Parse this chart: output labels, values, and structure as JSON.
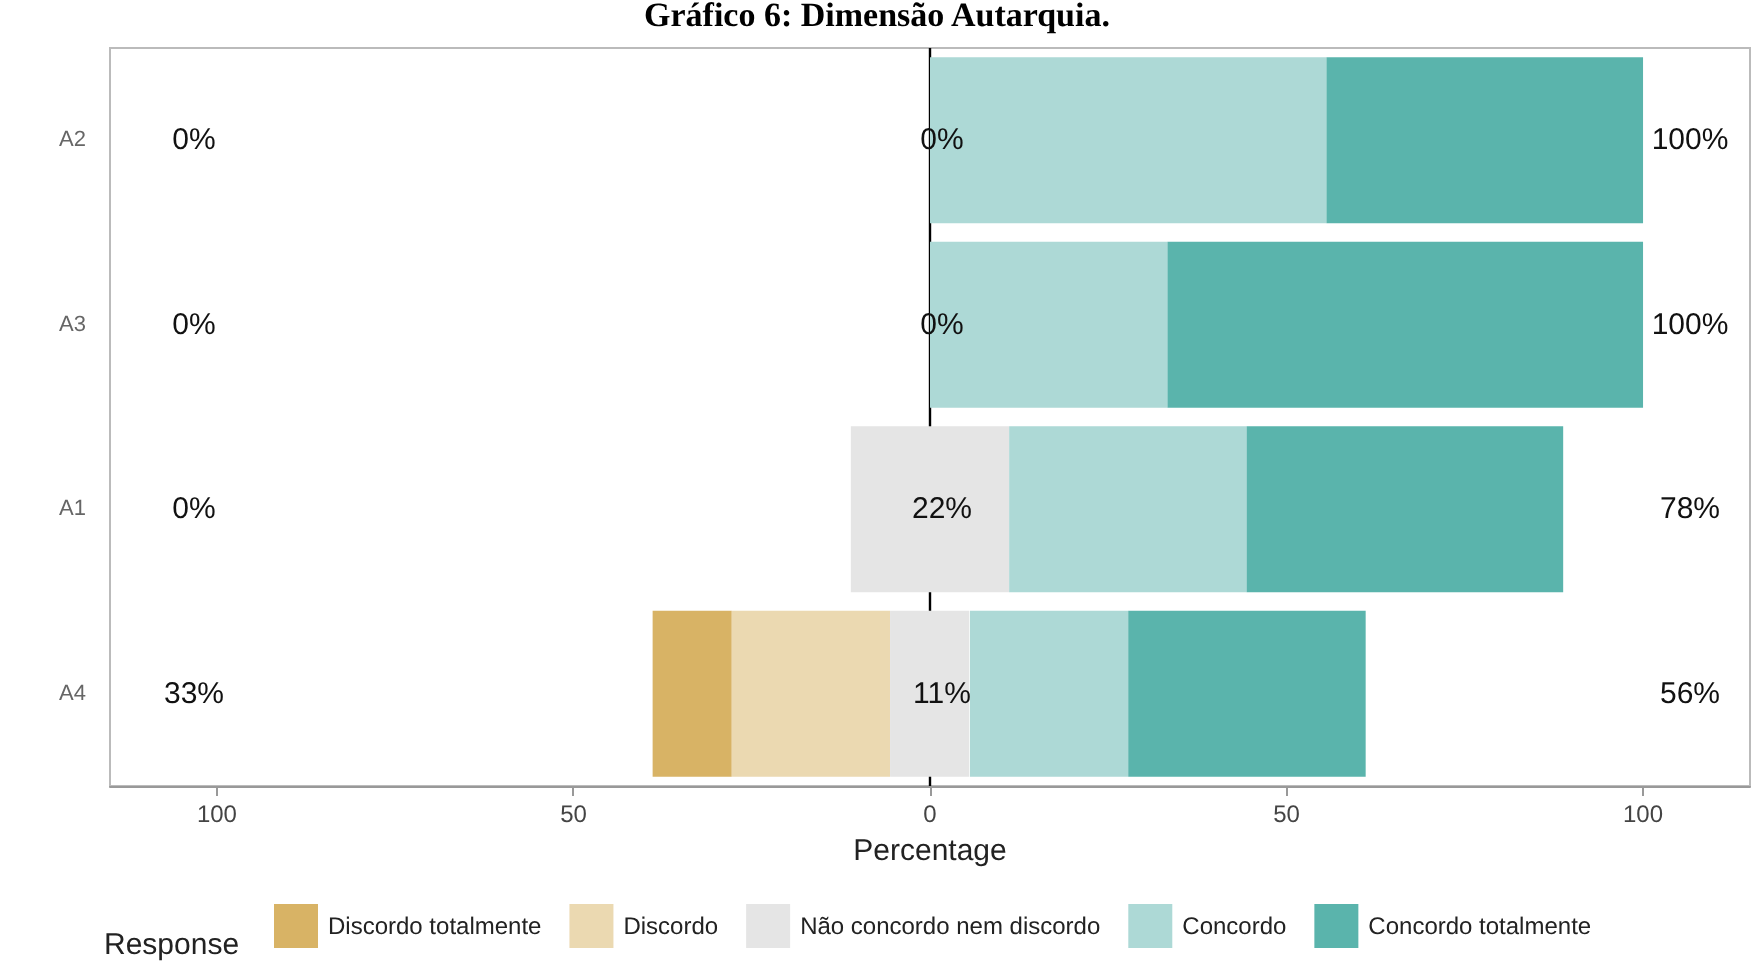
{
  "chart_data": {
    "type": "bar",
    "orientation": "horizontal",
    "title": "Gráfico 6: Dimensão Autarquia.",
    "xlabel": "Percentage",
    "legend_title": "Response",
    "categories": [
      "A2",
      "A3",
      "A1",
      "A4"
    ],
    "series": [
      {
        "name": "Discordo totalmente",
        "color": "#d8b365",
        "values": [
          null,
          null,
          null,
          11.1
        ],
        "base": [
          null,
          null,
          null,
          -38.9
        ]
      },
      {
        "name": "Discordo",
        "color": "#ebd9b1",
        "values": [
          null,
          null,
          null,
          22.2
        ],
        "base": [
          null,
          null,
          null,
          -27.8
        ]
      },
      {
        "name": "Não concordo nem discordo",
        "color": "#e5e5e5",
        "values": [
          null,
          null,
          22.2,
          11.1
        ],
        "base": [
          null,
          null,
          -11.1,
          -5.6
        ]
      },
      {
        "name": "Concordo",
        "color": "#add9d6",
        "values": [
          55.6,
          33.3,
          33.3,
          22.2
        ],
        "base": [
          0,
          0,
          11.1,
          5.6
        ]
      },
      {
        "name": "Concordo totalmente",
        "color": "#5ab4ac",
        "values": [
          44.4,
          66.7,
          44.4,
          33.3
        ],
        "base": [
          55.6,
          33.3,
          44.4,
          27.8
        ]
      }
    ],
    "xlim": [
      -115,
      115
    ],
    "xticks": [
      {
        "value": -100,
        "label": "100"
      },
      {
        "value": -50,
        "label": "50"
      },
      0,
      50,
      100
    ],
    "ref_lines": [
      {
        "axis": "x",
        "value": 0,
        "color": "#000000"
      }
    ],
    "annotations": [
      "0%",
      "0%",
      "100%",
      "0%",
      "0%",
      "100%",
      "0%",
      "22%",
      "78%",
      "33%",
      "11%",
      "56%"
    ],
    "grid": false,
    "legend": "bottom"
  }
}
